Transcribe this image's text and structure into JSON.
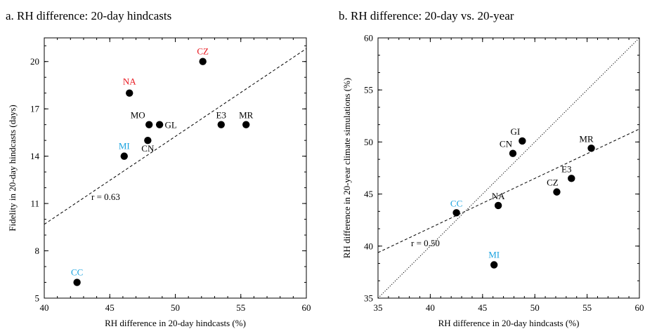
{
  "chart_data": [
    {
      "type": "scatter",
      "title": "a. RH difference: 20-day hindcasts",
      "xlabel": "RH difference in 20-day hindcasts (%)",
      "ylabel": "Fidelity in 20-day hindcasts (days)",
      "xlim": [
        40,
        60
      ],
      "ylim": [
        5,
        21.5
      ],
      "xticks": [
        40,
        45,
        50,
        55,
        60
      ],
      "yticks": [
        5,
        8,
        11,
        14,
        17,
        20
      ],
      "annotation": "r = 0.63",
      "regression": {
        "style": "dashed",
        "slope": 0.557,
        "intercept": -12.6
      },
      "points": [
        {
          "label": "CZ",
          "x": 52.1,
          "y": 20,
          "color": "#e8141c"
        },
        {
          "label": "NA",
          "x": 46.5,
          "y": 18,
          "color": "#e8141c"
        },
        {
          "label": "MO",
          "x": 48.0,
          "y": 16,
          "color": "#000000"
        },
        {
          "label": "GL",
          "x": 48.8,
          "y": 16,
          "color": "#000000"
        },
        {
          "label": "E3",
          "x": 53.5,
          "y": 16,
          "color": "#000000"
        },
        {
          "label": "MR",
          "x": 55.4,
          "y": 16,
          "color": "#000000"
        },
        {
          "label": "CN",
          "x": 47.9,
          "y": 15,
          "color": "#000000"
        },
        {
          "label": "MI",
          "x": 46.1,
          "y": 14,
          "color": "#1aa3e0"
        },
        {
          "label": "CC",
          "x": 42.5,
          "y": 6,
          "color": "#1aa3e0"
        }
      ]
    },
    {
      "type": "scatter",
      "title": "b. RH difference: 20-day vs. 20-year",
      "xlabel": "RH difference in 20-day hindcasts (%)",
      "ylabel": "RH difference in 20-year climate simulations (%)",
      "xlim": [
        35,
        60
      ],
      "ylim": [
        35,
        60
      ],
      "xticks": [
        35,
        40,
        45,
        50,
        55,
        60
      ],
      "yticks": [
        35,
        40,
        45,
        50,
        55,
        60
      ],
      "annotation": "r = 0.50",
      "regression": {
        "style": "dashed",
        "slope": 0.475,
        "intercept": 22.75
      },
      "identity_line": {
        "style": "dotted"
      },
      "points": [
        {
          "label": "GI",
          "x": 48.8,
          "y": 50.1,
          "color": "#000000"
        },
        {
          "label": "MR",
          "x": 55.4,
          "y": 49.4,
          "color": "#000000"
        },
        {
          "label": "CN",
          "x": 47.9,
          "y": 48.9,
          "color": "#000000"
        },
        {
          "label": "E3",
          "x": 53.5,
          "y": 46.5,
          "color": "#000000"
        },
        {
          "label": "CZ",
          "x": 52.1,
          "y": 45.2,
          "color": "#000000"
        },
        {
          "label": "NA",
          "x": 46.5,
          "y": 43.9,
          "color": "#000000"
        },
        {
          "label": "CC",
          "x": 42.5,
          "y": 43.2,
          "color": "#1aa3e0"
        },
        {
          "label": "MI",
          "x": 46.1,
          "y": 38.2,
          "color": "#1aa3e0"
        }
      ]
    }
  ]
}
